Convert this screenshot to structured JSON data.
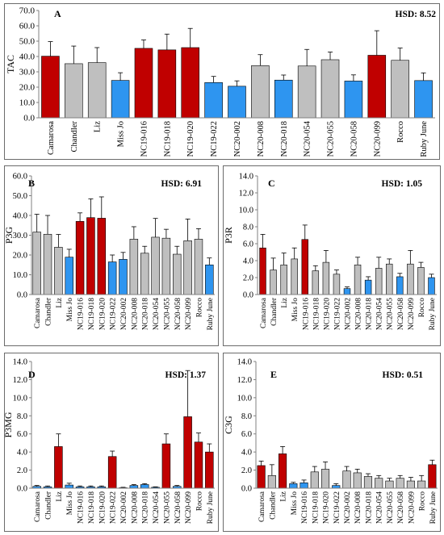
{
  "colors": {
    "red": "#c00000",
    "grey": "#bfbfbf",
    "blue": "#2e95f0",
    "axis": "#808080",
    "outline": "#000000"
  },
  "chart_data": [
    {
      "id": "A",
      "type": "bar",
      "panel_letter": "A",
      "hsd_label": "HSD: 8.52",
      "ylabel": "TAC",
      "ylim": [
        0,
        70
      ],
      "ytick_step": 10,
      "ytick_decimals": 1,
      "categories": [
        "Camarosa",
        "Chandler",
        "Liz",
        "Miss Jo",
        "NC19-016",
        "NC19-018",
        "NC19-020",
        "NC19-022",
        "NC20-002",
        "NC20-008",
        "NC20-018",
        "NC20-054",
        "NC20-055",
        "NC20-058",
        "NC20-099",
        "Rocco",
        "Ruby June"
      ],
      "values": [
        40.2,
        35.3,
        36.0,
        24.4,
        45.3,
        44.3,
        45.8,
        23.0,
        20.6,
        34.0,
        24.6,
        33.8,
        37.9,
        24.0,
        40.8,
        37.5,
        24.3
      ],
      "errors": [
        9.5,
        11.5,
        9.8,
        5.0,
        5.5,
        10.3,
        12.5,
        4.0,
        3.5,
        7.2,
        3.3,
        10.8,
        5.0,
        4.0,
        16.0,
        8.0,
        5.0
      ],
      "colors": [
        "red",
        "grey",
        "grey",
        "blue",
        "red",
        "red",
        "red",
        "blue",
        "blue",
        "grey",
        "blue",
        "grey",
        "grey",
        "blue",
        "red",
        "grey",
        "blue"
      ]
    },
    {
      "id": "B",
      "type": "bar",
      "panel_letter": "B",
      "hsd_label": "HSD: 6.91",
      "ylabel": "P3G",
      "ylim": [
        0,
        60
      ],
      "ytick_step": 10,
      "ytick_decimals": 1,
      "categories": [
        "Camarosa",
        "Chandler",
        "Liz",
        "Miss Jo",
        "NC19-016",
        "NC19-018",
        "NC19-020",
        "NC19-022",
        "NC20-002",
        "NC20-008",
        "NC20-018",
        "NC20-054",
        "NC20-055",
        "NC20-058",
        "NC20-099",
        "Rocco",
        "Ruby June"
      ],
      "values": [
        31.6,
        30.5,
        23.9,
        18.9,
        37.0,
        38.9,
        38.6,
        16.5,
        17.8,
        28.0,
        20.9,
        29.0,
        28.5,
        20.4,
        27.2,
        28.0,
        15.0
      ],
      "errors": [
        9.0,
        9.5,
        6.5,
        4.0,
        4.3,
        9.5,
        10.8,
        3.5,
        3.5,
        6.3,
        3.5,
        9.5,
        4.5,
        4.0,
        11.0,
        5.3,
        3.5
      ],
      "colors": [
        "grey",
        "grey",
        "grey",
        "blue",
        "red",
        "red",
        "red",
        "blue",
        "blue",
        "grey",
        "grey",
        "grey",
        "grey",
        "grey",
        "grey",
        "grey",
        "blue"
      ]
    },
    {
      "id": "C",
      "type": "bar",
      "panel_letter": "C",
      "hsd_label": "HSD: 1.05",
      "ylabel": "P3R",
      "ylim": [
        0,
        14
      ],
      "ytick_step": 2,
      "ytick_decimals": 1,
      "categories": [
        "Camarosa",
        "Chandler",
        "Liz",
        "Miss Jo",
        "NC19-016",
        "NC19-018",
        "NC19-020",
        "NC19-022",
        "NC20-002",
        "NC20-008",
        "NC20-018",
        "NC20-054",
        "NC20-055",
        "NC20-058",
        "NC20-099",
        "Rocco",
        "Ruby June"
      ],
      "values": [
        5.5,
        2.9,
        3.5,
        4.2,
        6.5,
        2.8,
        3.8,
        2.4,
        0.7,
        3.5,
        1.7,
        3.1,
        3.6,
        2.1,
        3.6,
        3.2,
        2.0
      ],
      "errors": [
        1.6,
        1.4,
        1.4,
        1.3,
        1.7,
        0.6,
        1.4,
        0.5,
        0.2,
        0.9,
        0.4,
        1.3,
        0.6,
        0.4,
        1.6,
        0.6,
        0.4
      ],
      "colors": [
        "red",
        "grey",
        "grey",
        "grey",
        "red",
        "grey",
        "grey",
        "grey",
        "blue",
        "grey",
        "blue",
        "grey",
        "grey",
        "blue",
        "grey",
        "grey",
        "blue"
      ]
    },
    {
      "id": "D",
      "type": "bar",
      "panel_letter": "D",
      "hsd_label": "HSD: 1.37",
      "ylabel": "P3MG",
      "ylim": [
        0,
        14
      ],
      "ytick_step": 2,
      "ytick_decimals": 1,
      "categories": [
        "Camarosa",
        "Chandler",
        "Liz",
        "Miss Jo",
        "NC19-016",
        "NC19-018",
        "NC19-020",
        "NC19-022",
        "NC20-002",
        "NC20-008",
        "NC20-018",
        "NC20-054",
        "NC20-055",
        "NC20-058",
        "NC20-099",
        "Rocco",
        "Ruby June"
      ],
      "values": [
        0.2,
        0.15,
        4.6,
        0.35,
        0.15,
        0.15,
        0.15,
        3.5,
        0.05,
        0.3,
        0.4,
        0.1,
        4.9,
        0.2,
        7.9,
        5.1,
        4.0
      ],
      "errors": [
        0.1,
        0.1,
        1.4,
        0.2,
        0.1,
        0.1,
        0.1,
        0.6,
        0.05,
        0.1,
        0.1,
        0.05,
        1.1,
        0.1,
        5.1,
        1.0,
        0.9
      ],
      "colors": [
        "blue",
        "blue",
        "red",
        "blue",
        "blue",
        "blue",
        "blue",
        "red",
        "blue",
        "blue",
        "blue",
        "blue",
        "red",
        "blue",
        "red",
        "red",
        "red"
      ]
    },
    {
      "id": "E",
      "type": "bar",
      "panel_letter": "E",
      "hsd_label": "HSD: 0.51",
      "ylabel": "C3G",
      "ylim": [
        0,
        14
      ],
      "ytick_step": 2,
      "ytick_decimals": 1,
      "categories": [
        "Camarosa",
        "Chandler",
        "Liz",
        "Miss Jo",
        "NC19-016",
        "NC19-018",
        "NC19-020",
        "NC19-022",
        "NC20-002",
        "NC20-008",
        "NC20-018",
        "NC20-054",
        "NC20-055",
        "NC20-058",
        "NC20-099",
        "Rocco",
        "Ruby June"
      ],
      "values": [
        2.5,
        1.4,
        3.8,
        0.5,
        0.6,
        1.8,
        2.1,
        0.3,
        1.9,
        1.7,
        1.3,
        1.1,
        0.8,
        1.1,
        0.8,
        0.8,
        2.6
      ],
      "errors": [
        0.5,
        1.2,
        0.8,
        0.15,
        0.3,
        0.6,
        0.8,
        0.2,
        0.5,
        0.4,
        0.3,
        0.3,
        0.3,
        0.3,
        0.4,
        0.6,
        0.5
      ],
      "colors": [
        "red",
        "grey",
        "red",
        "blue",
        "blue",
        "grey",
        "grey",
        "blue",
        "grey",
        "grey",
        "grey",
        "grey",
        "grey",
        "grey",
        "grey",
        "grey",
        "red"
      ]
    }
  ]
}
